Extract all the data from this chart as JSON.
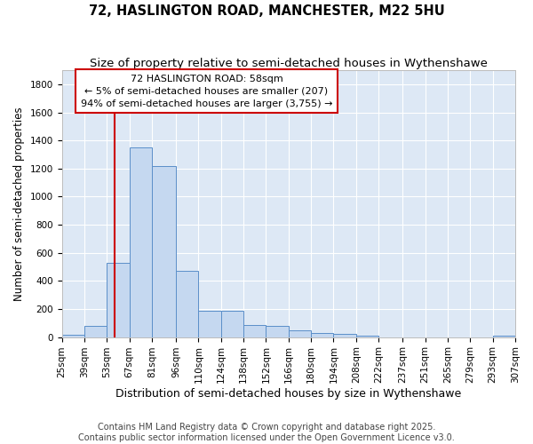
{
  "title": "72, HASLINGTON ROAD, MANCHESTER, M22 5HU",
  "subtitle": "Size of property relative to semi-detached houses in Wythenshawe",
  "xlabel": "Distribution of semi-detached houses by size in Wythenshawe",
  "ylabel": "Number of semi-detached properties",
  "bar_edges": [
    25,
    39,
    53,
    67,
    81,
    96,
    110,
    124,
    138,
    152,
    166,
    180,
    194,
    208,
    222,
    237,
    251,
    265,
    279,
    293,
    307
  ],
  "bar_heights": [
    15,
    80,
    530,
    1350,
    1220,
    470,
    185,
    185,
    85,
    80,
    48,
    30,
    20,
    10,
    0,
    0,
    0,
    0,
    0,
    10
  ],
  "bar_color": "#c5d8f0",
  "bar_edge_color": "#5b8fc9",
  "bg_color": "#dde8f5",
  "grid_color": "#ffffff",
  "annotation_text": "72 HASLINGTON ROAD: 58sqm\n← 5% of semi-detached houses are smaller (207)\n94% of semi-detached houses are larger (3,755) →",
  "vline_x": 58,
  "vline_color": "#cc0000",
  "ylim": [
    0,
    1900
  ],
  "yticks": [
    0,
    200,
    400,
    600,
    800,
    1000,
    1200,
    1400,
    1600,
    1800
  ],
  "tick_labels": [
    "25sqm",
    "39sqm",
    "53sqm",
    "67sqm",
    "81sqm",
    "96sqm",
    "110sqm",
    "124sqm",
    "138sqm",
    "152sqm",
    "166sqm",
    "180sqm",
    "194sqm",
    "208sqm",
    "222sqm",
    "237sqm",
    "251sqm",
    "265sqm",
    "279sqm",
    "293sqm",
    "307sqm"
  ],
  "footer": "Contains HM Land Registry data © Crown copyright and database right 2025.\nContains public sector information licensed under the Open Government Licence v3.0.",
  "title_fontsize": 10.5,
  "subtitle_fontsize": 9.5,
  "xlabel_fontsize": 9,
  "ylabel_fontsize": 8.5,
  "tick_fontsize": 7.5,
  "annot_fontsize": 8,
  "footer_fontsize": 7
}
